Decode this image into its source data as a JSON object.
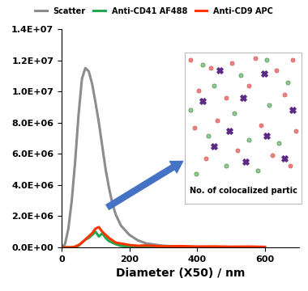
{
  "chart_data": {
    "type": "line",
    "x_label": "Diameter (X50) / nm",
    "x": [
      0,
      10,
      20,
      30,
      40,
      50,
      60,
      70,
      80,
      90,
      100,
      110,
      120,
      130,
      140,
      150,
      160,
      175,
      200,
      225,
      250,
      300,
      350,
      400,
      450,
      500,
      550,
      600
    ],
    "series": [
      {
        "name": "Scatter",
        "color": "#8c8c8c",
        "values": [
          0,
          200000,
          1200000,
          3000000,
          5500000,
          8500000,
          10800000,
          11500000,
          11300000,
          10500000,
          9300000,
          8000000,
          6500000,
          5000000,
          3800000,
          2800000,
          2100000,
          1400000,
          800000,
          450000,
          250000,
          100000,
          50000,
          30000,
          20000,
          20000,
          10000,
          10000
        ]
      },
      {
        "name": "Anti-CD41 AF488",
        "color": "#1fa84f",
        "values": [
          0,
          0,
          0,
          0,
          20000,
          100000,
          300000,
          500000,
          600000,
          800000,
          1000000,
          700000,
          900000,
          600000,
          400000,
          300000,
          200000,
          100000,
          50000,
          20000,
          10000,
          0,
          0,
          0,
          0,
          0,
          0,
          0
        ]
      },
      {
        "name": "Anti-CD9 APC",
        "color": "#ff3300",
        "values": [
          0,
          0,
          0,
          0,
          50000,
          150000,
          300000,
          500000,
          700000,
          900000,
          1200000,
          1300000,
          1000000,
          800000,
          600000,
          450000,
          300000,
          250000,
          150000,
          100000,
          120000,
          60000,
          80000,
          50000,
          60000,
          40000,
          50000,
          30000
        ]
      }
    ],
    "xlim": [
      0,
      700
    ],
    "xticks": [
      0,
      200,
      400,
      600
    ],
    "ylim": [
      0,
      14000000
    ],
    "yticks": [
      {
        "value": 0,
        "label": "0.0E+00"
      },
      {
        "value": 2000000,
        "label": "2.0E+06"
      },
      {
        "value": 4000000,
        "label": "4.0E+06"
      },
      {
        "value": 6000000,
        "label": "6.0E+06"
      },
      {
        "value": 8000000,
        "label": "8.0E+06"
      },
      {
        "value": 10000000,
        "label": "1.0E+07"
      },
      {
        "value": 12000000,
        "label": "1.2E+07"
      },
      {
        "value": 14000000,
        "label": "1.4E+07"
      }
    ],
    "legend": "upper center",
    "grid": false,
    "inset": {
      "caption": "No. of colocalized partic",
      "red_particles": [
        [
          5,
          95
        ],
        [
          22,
          90
        ],
        [
          40,
          93
        ],
        [
          60,
          96
        ],
        [
          78,
          88
        ],
        [
          92,
          95
        ],
        [
          12,
          75
        ],
        [
          35,
          70
        ],
        [
          55,
          78
        ],
        [
          85,
          72
        ],
        [
          8,
          50
        ],
        [
          28,
          55
        ],
        [
          65,
          52
        ],
        [
          95,
          48
        ],
        [
          18,
          30
        ],
        [
          45,
          35
        ],
        [
          75,
          32
        ],
        [
          90,
          25
        ]
      ],
      "green_particles": [
        [
          15,
          92
        ],
        [
          48,
          85
        ],
        [
          70,
          95
        ],
        [
          25,
          78
        ],
        [
          88,
          80
        ],
        [
          5,
          62
        ],
        [
          42,
          60
        ],
        [
          72,
          65
        ],
        [
          20,
          45
        ],
        [
          55,
          42
        ],
        [
          80,
          40
        ],
        [
          35,
          25
        ],
        [
          62,
          22
        ],
        [
          10,
          20
        ]
      ],
      "colocalized": [
        [
          30,
          88
        ],
        [
          68,
          86
        ],
        [
          15,
          68
        ],
        [
          50,
          70
        ],
        [
          92,
          62
        ],
        [
          38,
          48
        ],
        [
          70,
          45
        ],
        [
          25,
          38
        ],
        [
          85,
          30
        ],
        [
          52,
          28
        ]
      ]
    }
  }
}
